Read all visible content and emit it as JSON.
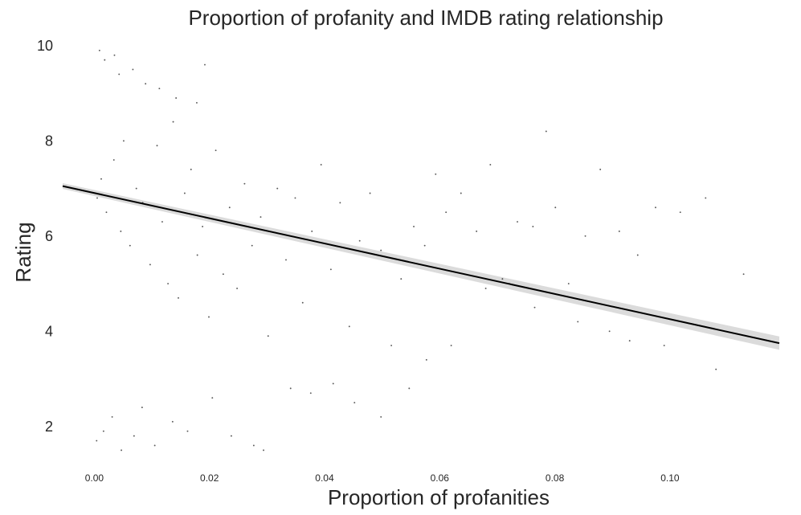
{
  "chart_data": {
    "type": "scatter",
    "title": "Proportion of profanity and IMDB rating relationship",
    "xlabel": "Proportion of profanities",
    "ylabel": "Rating",
    "xlim": [
      -0.0055,
      0.119
    ],
    "ylim": [
      1.0,
      10.2
    ],
    "x_ticks": [
      {
        "value": 0.0,
        "label": "0.00"
      },
      {
        "value": 0.02,
        "label": "0.02"
      },
      {
        "value": 0.04,
        "label": "0.04"
      },
      {
        "value": 0.06,
        "label": "0.06"
      },
      {
        "value": 0.08,
        "label": "0.08"
      },
      {
        "value": 0.1,
        "label": "0.10"
      }
    ],
    "y_ticks": [
      {
        "value": 2,
        "label": "2"
      },
      {
        "value": 4,
        "label": "4"
      },
      {
        "value": 6,
        "label": "6"
      },
      {
        "value": 8,
        "label": "8"
      },
      {
        "value": 10,
        "label": "10"
      }
    ],
    "grid": false,
    "regression": {
      "x_start": -0.0055,
      "y_start": 7.05,
      "x_end": 0.119,
      "y_end": 3.75,
      "ci_half_width_start": 0.06,
      "ci_half_width_end": 0.14
    },
    "series": [
      {
        "values": [
          [
            0.0005,
            6.8
          ],
          [
            0.0012,
            7.2
          ],
          [
            0.0021,
            6.5
          ],
          [
            0.0034,
            7.6
          ],
          [
            0.0046,
            6.1
          ],
          [
            0.0051,
            8.0
          ],
          [
            0.0062,
            5.8
          ],
          [
            0.0073,
            7.0
          ],
          [
            0.0084,
            6.7
          ],
          [
            0.0097,
            5.4
          ],
          [
            0.0109,
            7.9
          ],
          [
            0.0118,
            6.3
          ],
          [
            0.0128,
            5.0
          ],
          [
            0.0137,
            8.4
          ],
          [
            0.0146,
            4.7
          ],
          [
            0.0157,
            6.9
          ],
          [
            0.0168,
            7.4
          ],
          [
            0.0179,
            5.6
          ],
          [
            0.0188,
            6.2
          ],
          [
            0.0199,
            4.3
          ],
          [
            0.0211,
            7.8
          ],
          [
            0.0224,
            5.2
          ],
          [
            0.0235,
            6.6
          ],
          [
            0.0248,
            4.9
          ],
          [
            0.0261,
            7.1
          ],
          [
            0.0274,
            5.8
          ],
          [
            0.0289,
            6.4
          ],
          [
            0.0302,
            3.9
          ],
          [
            0.0318,
            7.0
          ],
          [
            0.0333,
            5.5
          ],
          [
            0.0349,
            6.8
          ],
          [
            0.0362,
            4.6
          ],
          [
            0.0378,
            6.1
          ],
          [
            0.0394,
            7.5
          ],
          [
            0.0411,
            5.3
          ],
          [
            0.0427,
            6.7
          ],
          [
            0.0443,
            4.1
          ],
          [
            0.0461,
            5.9
          ],
          [
            0.0479,
            6.9
          ],
          [
            0.0498,
            5.7
          ],
          [
            0.0516,
            3.7
          ],
          [
            0.0533,
            5.1
          ],
          [
            0.0555,
            6.2
          ],
          [
            0.0574,
            5.8
          ],
          [
            0.0593,
            7.3
          ],
          [
            0.0611,
            6.5
          ],
          [
            0.0637,
            6.9
          ],
          [
            0.0664,
            6.1
          ],
          [
            0.0688,
            7.5
          ],
          [
            0.0709,
            5.1
          ],
          [
            0.0735,
            6.3
          ],
          [
            0.0762,
            6.2
          ],
          [
            0.0785,
            8.2
          ],
          [
            0.0801,
            6.6
          ],
          [
            0.0824,
            5.0
          ],
          [
            0.0853,
            6.0
          ],
          [
            0.0879,
            7.4
          ],
          [
            0.0912,
            6.1
          ],
          [
            0.0944,
            5.6
          ],
          [
            0.0975,
            6.6
          ],
          [
            0.1018,
            6.5
          ],
          [
            0.1062,
            6.8
          ],
          [
            0.1128,
            5.2
          ],
          [
            0.0009,
            9.9
          ],
          [
            0.0018,
            9.7
          ],
          [
            0.0035,
            9.8
          ],
          [
            0.0043,
            9.4
          ],
          [
            0.0067,
            9.5
          ],
          [
            0.0089,
            9.2
          ],
          [
            0.0113,
            9.1
          ],
          [
            0.0142,
            8.9
          ],
          [
            0.0178,
            8.8
          ],
          [
            0.0192,
            9.6
          ],
          [
            0.0004,
            1.7
          ],
          [
            0.0016,
            1.9
          ],
          [
            0.0031,
            2.2
          ],
          [
            0.0047,
            1.5
          ],
          [
            0.0069,
            1.8
          ],
          [
            0.0083,
            2.4
          ],
          [
            0.0105,
            1.6
          ],
          [
            0.0136,
            2.1
          ],
          [
            0.0162,
            1.9
          ],
          [
            0.0205,
            2.6
          ],
          [
            0.0238,
            1.8
          ],
          [
            0.0277,
            1.6
          ],
          [
            0.0294,
            1.5
          ],
          [
            0.0341,
            2.8
          ],
          [
            0.0376,
            2.7
          ],
          [
            0.0415,
            2.9
          ],
          [
            0.0452,
            2.5
          ],
          [
            0.0498,
            2.2
          ],
          [
            0.0547,
            2.8
          ],
          [
            0.0577,
            3.4
          ],
          [
            0.062,
            3.7
          ],
          [
            0.068,
            4.9
          ],
          [
            0.0721,
            5.0
          ],
          [
            0.0765,
            4.5
          ],
          [
            0.084,
            4.2
          ],
          [
            0.0895,
            4.0
          ],
          [
            0.093,
            3.8
          ],
          [
            0.099,
            3.7
          ],
          [
            0.108,
            3.2
          ]
        ]
      }
    ]
  }
}
